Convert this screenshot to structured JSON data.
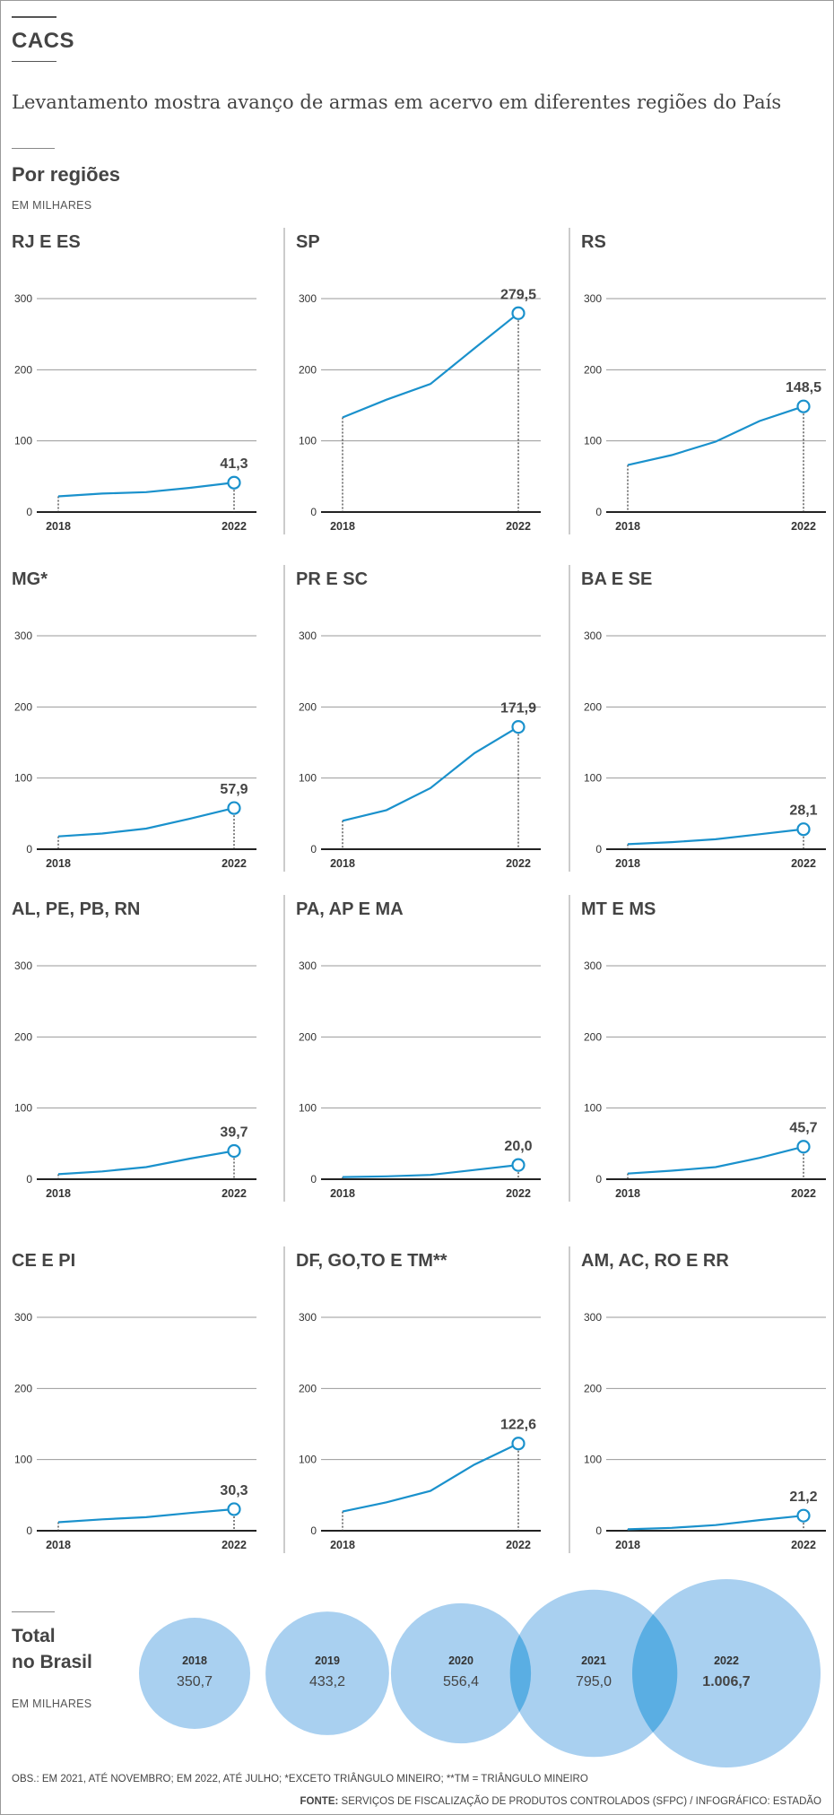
{
  "header": {
    "kicker": "CACS",
    "headline": "Levantamento mostra avanço de armas em acervo em diferentes regiões do País"
  },
  "regions_section": {
    "title": "Por regiões",
    "units": "EM MILHARES"
  },
  "colors": {
    "line": "#1a91cc",
    "bubble": "#a9d0f0",
    "bubble_overlap": "#5aaee3",
    "axis": "#222222",
    "grid": "#999999"
  },
  "chart_data": [
    {
      "type": "line",
      "title": "RJ E ES",
      "x": [
        2018,
        2019,
        2020,
        2021,
        2022
      ],
      "values": [
        22,
        26,
        28,
        34,
        41.3
      ],
      "value_label": "41,3",
      "ylim": [
        0,
        300
      ],
      "yticks": [
        "0",
        "100",
        "200",
        "300"
      ],
      "xticks": [
        "2018",
        "2022"
      ]
    },
    {
      "type": "line",
      "title": "SP",
      "x": [
        2018,
        2019,
        2020,
        2021,
        2022
      ],
      "values": [
        133,
        158,
        180,
        230,
        279.5
      ],
      "value_label": "279,5",
      "ylim": [
        0,
        300
      ],
      "yticks": [
        "0",
        "100",
        "200",
        "300"
      ],
      "xticks": [
        "2018",
        "2022"
      ]
    },
    {
      "type": "line",
      "title": "RS",
      "x": [
        2018,
        2019,
        2020,
        2021,
        2022
      ],
      "values": [
        66,
        80,
        99,
        128,
        148.5
      ],
      "value_label": "148,5",
      "ylim": [
        0,
        300
      ],
      "yticks": [
        "0",
        "100",
        "200",
        "300"
      ],
      "xticks": [
        "2018",
        "2022"
      ]
    },
    {
      "type": "line",
      "title": "MG*",
      "x": [
        2018,
        2019,
        2020,
        2021,
        2022
      ],
      "values": [
        18,
        22,
        29,
        43,
        57.9
      ],
      "value_label": "57,9",
      "ylim": [
        0,
        300
      ],
      "yticks": [
        "0",
        "100",
        "200",
        "300"
      ],
      "xticks": [
        "2018",
        "2022"
      ]
    },
    {
      "type": "line",
      "title": "PR E SC",
      "x": [
        2018,
        2019,
        2020,
        2021,
        2022
      ],
      "values": [
        40,
        55,
        86,
        135,
        171.9
      ],
      "value_label": "171,9",
      "ylim": [
        0,
        300
      ],
      "yticks": [
        "0",
        "100",
        "200",
        "300"
      ],
      "xticks": [
        "2018",
        "2022"
      ]
    },
    {
      "type": "line",
      "title": "BA E SE",
      "x": [
        2018,
        2019,
        2020,
        2021,
        2022
      ],
      "values": [
        7,
        10,
        14,
        21,
        28.1
      ],
      "value_label": "28,1",
      "ylim": [
        0,
        300
      ],
      "yticks": [
        "0",
        "100",
        "200",
        "300"
      ],
      "xticks": [
        "2018",
        "2022"
      ]
    },
    {
      "type": "line",
      "title": "AL, PE, PB, RN",
      "x": [
        2018,
        2019,
        2020,
        2021,
        2022
      ],
      "values": [
        7,
        11,
        17,
        29,
        39.7
      ],
      "value_label": "39,7",
      "ylim": [
        0,
        300
      ],
      "yticks": [
        "0",
        "100",
        "200",
        "300"
      ],
      "xticks": [
        "2018",
        "2022"
      ]
    },
    {
      "type": "line",
      "title": "PA, AP E MA",
      "x": [
        2018,
        2019,
        2020,
        2021,
        2022
      ],
      "values": [
        3,
        4,
        6,
        13,
        20.0
      ],
      "value_label": "20,0",
      "ylim": [
        0,
        300
      ],
      "yticks": [
        "0",
        "100",
        "200",
        "300"
      ],
      "xticks": [
        "2018",
        "2022"
      ]
    },
    {
      "type": "line",
      "title": "MT E MS",
      "x": [
        2018,
        2019,
        2020,
        2021,
        2022
      ],
      "values": [
        8,
        12,
        17,
        30,
        45.7
      ],
      "value_label": "45,7",
      "ylim": [
        0,
        300
      ],
      "yticks": [
        "0",
        "100",
        "200",
        "300"
      ],
      "xticks": [
        "2018",
        "2022"
      ]
    },
    {
      "type": "line",
      "title": "CE E PI",
      "x": [
        2018,
        2019,
        2020,
        2021,
        2022
      ],
      "values": [
        12,
        16,
        19,
        25,
        30.3
      ],
      "value_label": "30,3",
      "ylim": [
        0,
        300
      ],
      "yticks": [
        "0",
        "100",
        "200",
        "300"
      ],
      "xticks": [
        "2018",
        "2022"
      ]
    },
    {
      "type": "line",
      "title": "DF, GO,TO E TM**",
      "x": [
        2018,
        2019,
        2020,
        2021,
        2022
      ],
      "values": [
        27,
        40,
        56,
        93,
        122.6
      ],
      "value_label": "122,6",
      "ylim": [
        0,
        300
      ],
      "yticks": [
        "0",
        "100",
        "200",
        "300"
      ],
      "xticks": [
        "2018",
        "2022"
      ]
    },
    {
      "type": "line",
      "title": "AM, AC, RO E RR",
      "x": [
        2018,
        2019,
        2020,
        2021,
        2022
      ],
      "values": [
        2,
        4,
        8,
        15,
        21.2
      ],
      "value_label": "21,2",
      "ylim": [
        0,
        300
      ],
      "yticks": [
        "0",
        "100",
        "200",
        "300"
      ],
      "xticks": [
        "2018",
        "2022"
      ]
    },
    {
      "type": "bubble",
      "title": "Total no Brasil",
      "units": "EM MILHARES",
      "points": [
        {
          "year": "2018",
          "value": 350.7,
          "label": "350,7"
        },
        {
          "year": "2019",
          "value": 433.2,
          "label": "433,2"
        },
        {
          "year": "2020",
          "value": 556.4,
          "label": "556,4"
        },
        {
          "year": "2021",
          "value": 795.0,
          "label": "795,0"
        },
        {
          "year": "2022",
          "value": 1006.7,
          "label": "1.006,7"
        }
      ]
    }
  ],
  "total_section": {
    "title_line1": "Total",
    "title_line2": "no Brasil",
    "units": "EM MILHARES"
  },
  "footer": {
    "note": "OBS.: EM 2021, ATÉ NOVEMBRO; EM 2022, ATÉ JULHO; *EXCETO TRIÂNGULO MINEIRO; **TM = TRIÂNGULO MINEIRO",
    "source_label": "FONTE:",
    "source_text": " SERVIÇOS DE FISCALIZAÇÃO DE PRODUTOS CONTROLADOS (SFPC)  / INFOGRÁFICO: ESTADÃO"
  }
}
